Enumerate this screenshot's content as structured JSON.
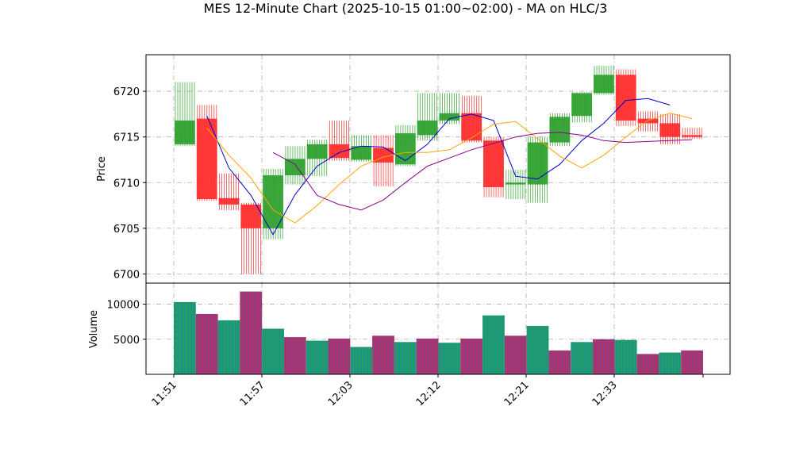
{
  "chart_data": {
    "type": "candlestick",
    "title": "MES 12-Minute Chart (2025-10-15 01:00~02:00) - MA on HLC/3",
    "price_panel": {
      "ylabel": "Price",
      "ylim": [
        6699,
        6724
      ],
      "yticks": [
        6700,
        6705,
        6710,
        6715,
        6720
      ],
      "grid": true
    },
    "volume_panel": {
      "ylabel": "Volume",
      "ylim": [
        0,
        13000
      ],
      "yticks": [
        5000,
        10000
      ],
      "grid": true
    },
    "x_tick_labels": [
      "11:51",
      "11:57",
      "12:03",
      "12:12",
      "12:21",
      "12:33"
    ],
    "colors": {
      "up": "#2ca02c",
      "down": "#ff2a2a",
      "ma_fast": "#0000cc",
      "ma_mid": "#ffa500",
      "ma_slow": "#8b008b",
      "volume_a": "#1f9e6b",
      "volume_b": "#b0306a",
      "volume_line": "#1f6fd0"
    },
    "bars": [
      {
        "open": 6714.2,
        "close": 6716.8,
        "high": 6721.0,
        "low": 6714.0,
        "volume": 10300
      },
      {
        "open": 6717.0,
        "close": 6708.2,
        "high": 6718.5,
        "low": 6708.0,
        "volume": 8600
      },
      {
        "open": 6708.3,
        "close": 6707.6,
        "high": 6711.0,
        "low": 6707.0,
        "volume": 7700
      },
      {
        "open": 6707.6,
        "close": 6705.0,
        "high": 6707.8,
        "low": 6700.0,
        "volume": 11800
      },
      {
        "open": 6705.0,
        "close": 6710.8,
        "high": 6711.5,
        "low": 6703.8,
        "volume": 6500
      },
      {
        "open": 6710.8,
        "close": 6712.6,
        "high": 6714.0,
        "low": 6709.8,
        "volume": 5300
      },
      {
        "open": 6712.6,
        "close": 6714.2,
        "high": 6714.7,
        "low": 6710.7,
        "volume": 4800
      },
      {
        "open": 6714.2,
        "close": 6712.7,
        "high": 6716.8,
        "low": 6712.4,
        "volume": 5100
      },
      {
        "open": 6712.5,
        "close": 6714.0,
        "high": 6715.2,
        "low": 6712.3,
        "volume": 3900
      },
      {
        "open": 6713.8,
        "close": 6712.2,
        "high": 6715.2,
        "low": 6709.6,
        "volume": 5500
      },
      {
        "open": 6712.0,
        "close": 6715.4,
        "high": 6716.3,
        "low": 6711.8,
        "volume": 4600
      },
      {
        "open": 6715.2,
        "close": 6716.8,
        "high": 6719.8,
        "low": 6714.6,
        "volume": 5100
      },
      {
        "open": 6716.8,
        "close": 6717.6,
        "high": 6719.8,
        "low": 6716.4,
        "volume": 4500
      },
      {
        "open": 6717.6,
        "close": 6714.6,
        "high": 6719.5,
        "low": 6714.4,
        "volume": 5100
      },
      {
        "open": 6714.6,
        "close": 6709.5,
        "high": 6715.0,
        "low": 6708.4,
        "volume": 8400
      },
      {
        "open": 6709.8,
        "close": 6710.0,
        "high": 6711.4,
        "low": 6708.2,
        "volume": 5500
      },
      {
        "open": 6709.8,
        "close": 6714.4,
        "high": 6715.0,
        "low": 6707.8,
        "volume": 6900
      },
      {
        "open": 6714.4,
        "close": 6717.2,
        "high": 6717.6,
        "low": 6714.0,
        "volume": 3400
      },
      {
        "open": 6717.3,
        "close": 6719.8,
        "high": 6719.9,
        "low": 6716.6,
        "volume": 4600
      },
      {
        "open": 6719.8,
        "close": 6721.8,
        "high": 6722.8,
        "low": 6719.6,
        "volume": 5000
      },
      {
        "open": 6721.8,
        "close": 6716.8,
        "high": 6722.4,
        "low": 6716.2,
        "volume": 4900
      },
      {
        "open": 6717.0,
        "close": 6716.5,
        "high": 6717.8,
        "low": 6715.6,
        "volume": 2900
      },
      {
        "open": 6716.5,
        "close": 6715.0,
        "high": 6717.5,
        "low": 6714.2,
        "volume": 3100
      },
      {
        "open": 6715.2,
        "close": 6715.0,
        "high": 6716.0,
        "low": 6714.8,
        "volume": 3400
      }
    ],
    "ma_fast": [
      [
        6717.3,
        6717.3
      ],
      [
        6711.6,
        6711.6
      ],
      [
        6708.6,
        6708.6
      ],
      [
        6704.3,
        6704.3
      ],
      [
        6708.7,
        6708.7
      ],
      [
        6711.8,
        6711.8
      ],
      [
        6713.3,
        6713.3
      ],
      [
        6714.0,
        6714.0
      ],
      [
        6713.9,
        6713.9
      ],
      [
        6712.4,
        6712.4
      ],
      [
        6714.2,
        6714.2
      ],
      [
        6717.0,
        6717.0
      ],
      [
        6717.5,
        6717.5
      ],
      [
        6716.8,
        6716.8
      ],
      [
        6710.7,
        6710.7
      ],
      [
        6710.4,
        6710.4
      ],
      [
        6712.0,
        6712.0
      ],
      [
        6714.6,
        6714.6
      ],
      [
        6716.5,
        6716.5
      ],
      [
        6719.0,
        6719.0
      ],
      [
        6719.2,
        6719.2
      ],
      [
        6718.5,
        6718.5
      ]
    ],
    "ma_mid": [
      6716.0,
      6713.0,
      6710.5,
      6707.0,
      6705.6,
      6707.5,
      6709.8,
      6711.8,
      6712.8,
      6713.3,
      6713.3,
      6713.6,
      6714.9,
      6716.4,
      6716.7,
      6714.8,
      6712.9,
      6711.6,
      6713.0,
      6715.0,
      6716.8,
      6717.6,
      6717.0
    ],
    "ma_slow": [
      6713.3,
      6712.0,
      6708.6,
      6707.6,
      6707.0,
      6708.1,
      6710.0,
      6711.8,
      6712.7,
      6713.6,
      6714.3,
      6715.0,
      6715.4,
      6715.5,
      6715.2,
      6714.6,
      6714.4,
      6714.5,
      6714.6,
      6714.7
    ]
  }
}
